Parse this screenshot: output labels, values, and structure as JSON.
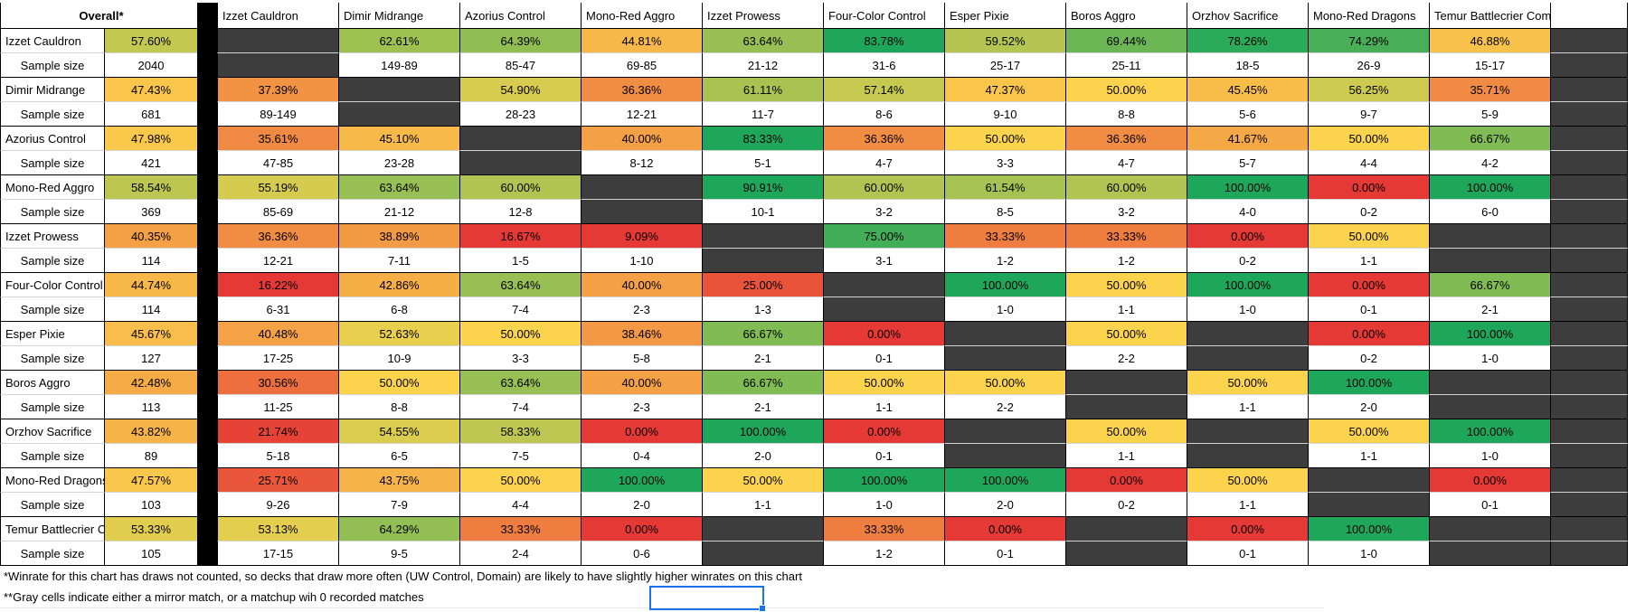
{
  "footnotes": [
    "*Winrate for this chart has draws not counted, so decks that draw more often (UW Control, Domain) are likely to have slightly higher winrates on this chart",
    "**Gray cells indicate either a mirror match, or a matchup wih 0 recorded matches"
  ],
  "chart_data": {
    "type": "heatmap",
    "overall_header": "Overall*",
    "sample_row_label": "Sample size",
    "columns": [
      "Izzet Cauldron",
      "Dimir Midrange",
      "Azorius Control",
      "Mono-Red Aggro",
      "Izzet Prowess",
      "Four-Color Control",
      "Esper Pixie",
      "Boros Aggro",
      "Orzhov Sacrifice",
      "Mono-Red Dragons",
      "Temur Battlecrier Combo"
    ],
    "rows": [
      "Izzet Cauldron",
      "Dimir Midrange",
      "Azorius Control",
      "Mono-Red Aggro",
      "Izzet Prowess",
      "Four-Color Control",
      "Esper Pixie",
      "Boros Aggro",
      "Orzhov Sacrifice",
      "Mono-Red Dragons",
      "Temur Battlecrier Combo"
    ],
    "overall": {
      "winrates": [
        57.6,
        47.43,
        47.98,
        58.54,
        40.35,
        44.74,
        45.67,
        42.48,
        43.82,
        47.57,
        53.33
      ],
      "samples": [
        "2040",
        "681",
        "421",
        "369",
        "114",
        "114",
        "127",
        "113",
        "89",
        "103",
        "105"
      ]
    },
    "matrix_winrates": [
      [
        null,
        62.61,
        64.39,
        44.81,
        63.64,
        83.78,
        59.52,
        69.44,
        78.26,
        74.29,
        46.88
      ],
      [
        37.39,
        null,
        54.9,
        36.36,
        61.11,
        57.14,
        47.37,
        50.0,
        45.45,
        56.25,
        35.71
      ],
      [
        35.61,
        45.1,
        null,
        40.0,
        83.33,
        36.36,
        50.0,
        36.36,
        41.67,
        50.0,
        66.67
      ],
      [
        55.19,
        63.64,
        60.0,
        null,
        90.91,
        60.0,
        61.54,
        60.0,
        100.0,
        0.0,
        100.0
      ],
      [
        36.36,
        38.89,
        16.67,
        9.09,
        null,
        75.0,
        33.33,
        33.33,
        0.0,
        50.0,
        null
      ],
      [
        16.22,
        42.86,
        63.64,
        40.0,
        25.0,
        null,
        100.0,
        50.0,
        100.0,
        0.0,
        66.67
      ],
      [
        40.48,
        52.63,
        50.0,
        38.46,
        66.67,
        0.0,
        null,
        50.0,
        null,
        0.0,
        100.0
      ],
      [
        30.56,
        50.0,
        63.64,
        40.0,
        66.67,
        50.0,
        50.0,
        null,
        50.0,
        100.0,
        null
      ],
      [
        21.74,
        54.55,
        58.33,
        0.0,
        100.0,
        0.0,
        null,
        50.0,
        null,
        50.0,
        100.0
      ],
      [
        25.71,
        43.75,
        50.0,
        100.0,
        50.0,
        100.0,
        100.0,
        0.0,
        50.0,
        null,
        0.0
      ],
      [
        53.13,
        64.29,
        33.33,
        0.0,
        null,
        33.33,
        0.0,
        null,
        0.0,
        100.0,
        null
      ]
    ],
    "matrix_samples": [
      [
        null,
        "149-89",
        "85-47",
        "69-85",
        "21-12",
        "31-6",
        "25-17",
        "25-11",
        "18-5",
        "26-9",
        "15-17"
      ],
      [
        "89-149",
        null,
        "28-23",
        "12-21",
        "11-7",
        "8-6",
        "9-10",
        "8-8",
        "5-6",
        "9-7",
        "5-9"
      ],
      [
        "47-85",
        "23-28",
        null,
        "8-12",
        "5-1",
        "4-7",
        "3-3",
        "4-7",
        "5-7",
        "4-4",
        "4-2"
      ],
      [
        "85-69",
        "21-12",
        "12-8",
        null,
        "10-1",
        "3-2",
        "8-5",
        "3-2",
        "4-0",
        "0-2",
        "6-0"
      ],
      [
        "12-21",
        "7-11",
        "1-5",
        "1-10",
        null,
        "3-1",
        "1-2",
        "1-2",
        "0-2",
        "1-1",
        null
      ],
      [
        "6-31",
        "6-8",
        "7-4",
        "2-3",
        "1-3",
        null,
        "1-0",
        "1-1",
        "1-0",
        "0-1",
        "2-1"
      ],
      [
        "17-25",
        "10-9",
        "3-3",
        "5-8",
        "2-1",
        "0-1",
        null,
        "2-2",
        null,
        "0-2",
        "1-0"
      ],
      [
        "11-25",
        "8-8",
        "7-4",
        "2-3",
        "2-1",
        "1-1",
        "2-2",
        null,
        "1-1",
        "2-0",
        null
      ],
      [
        "5-18",
        "6-5",
        "7-5",
        "0-4",
        "2-0",
        "0-1",
        null,
        "1-1",
        null,
        "1-1",
        "1-0"
      ],
      [
        "9-26",
        "7-9",
        "4-4",
        "2-0",
        "1-1",
        "1-0",
        "2-0",
        "0-2",
        "1-1",
        null,
        "0-1"
      ],
      [
        "17-15",
        "9-5",
        "2-4",
        "0-6",
        null,
        "1-2",
        "0-1",
        null,
        "0-1",
        "1-0",
        null
      ]
    ],
    "colors": {
      "heat_low": "#e53935",
      "heat_mid": "#fbd34d",
      "heat_high": "#1ea75a",
      "heat_span": 30,
      "gray_cell": "#3d3d3d",
      "separator": "#000000",
      "selection": "#1a73e8"
    }
  }
}
